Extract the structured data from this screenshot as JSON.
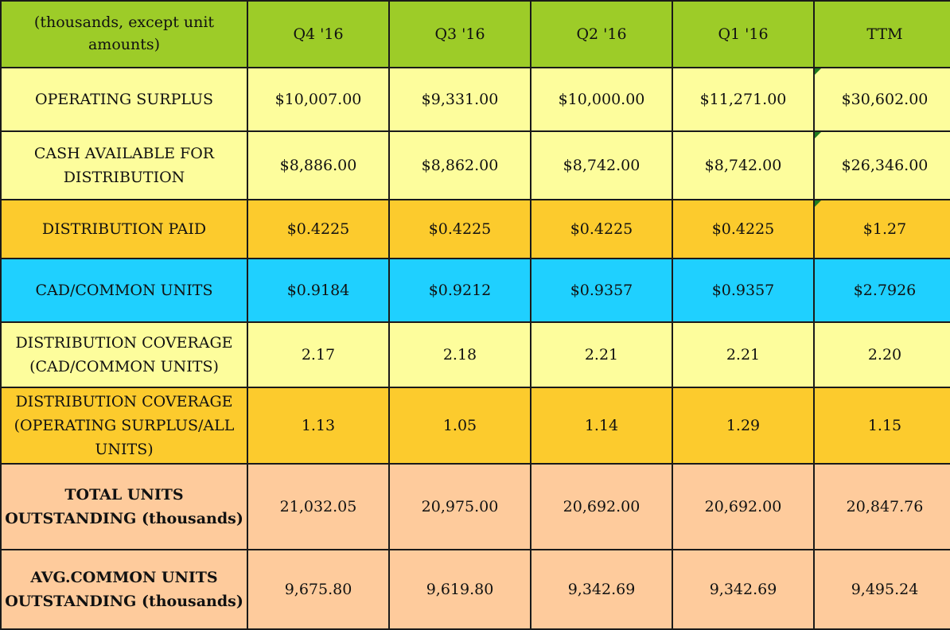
{
  "colors": {
    "header": "#9dcc28",
    "light_yellow": "#fdfd9c",
    "gold": "#fccb2d",
    "blue": "#1fd0ff",
    "peach": "#fecb9c"
  },
  "header": {
    "label": "(thousands, except unit amounts)",
    "columns": [
      "Q4 '16",
      "Q3 '16",
      "Q2 '16",
      "Q1 '16",
      "TTM"
    ]
  },
  "rows": [
    {
      "label": "OPERATING SURPLUS",
      "color": "light_yellow",
      "bold": false,
      "note_on_ttm": true,
      "values": [
        "$10,007.00",
        "$9,331.00",
        "$10,000.00",
        "$11,271.00",
        "$30,602.00"
      ]
    },
    {
      "label": "CASH AVAILABLE FOR DISTRIBUTION",
      "color": "light_yellow",
      "bold": false,
      "note_on_ttm": true,
      "values": [
        "$8,886.00",
        "$8,862.00",
        "$8,742.00",
        "$8,742.00",
        "$26,346.00"
      ]
    },
    {
      "label": "DISTRIBUTION PAID",
      "color": "gold",
      "bold": false,
      "note_on_ttm": true,
      "values": [
        "$0.4225",
        "$0.4225",
        "$0.4225",
        "$0.4225",
        "$1.27"
      ]
    },
    {
      "label": "CAD/COMMON UNITS",
      "color": "blue",
      "bold": false,
      "note_on_ttm": false,
      "values": [
        "$0.9184",
        "$0.9212",
        "$0.9357",
        "$0.9357",
        "$2.7926"
      ]
    },
    {
      "label": "DISTRIBUTION COVERAGE (CAD/COMMON UNITS)",
      "color": "light_yellow",
      "bold": false,
      "note_on_ttm": false,
      "values": [
        "2.17",
        "2.18",
        "2.21",
        "2.21",
        "2.20"
      ]
    },
    {
      "label": "DISTRIBUTION COVERAGE (OPERATING SURPLUS/ALL UNITS)",
      "color": "gold",
      "bold": false,
      "note_on_ttm": false,
      "values": [
        "1.13",
        "1.05",
        "1.14",
        "1.29",
        "1.15"
      ]
    },
    {
      "label": "TOTAL  UNITS OUTSTANDING (thousands)",
      "color": "peach",
      "bold": true,
      "note_on_ttm": false,
      "values": [
        "21,032.05",
        "20,975.00",
        "20,692.00",
        "20,692.00",
        "20,847.76"
      ]
    },
    {
      "label": "AVG.COMMON UNITS OUTSTANDING (thousands)",
      "color": "peach",
      "bold": true,
      "note_on_ttm": false,
      "values": [
        "9,675.80",
        "9,619.80",
        "9,342.69",
        "9,342.69",
        "9,495.24"
      ]
    }
  ]
}
